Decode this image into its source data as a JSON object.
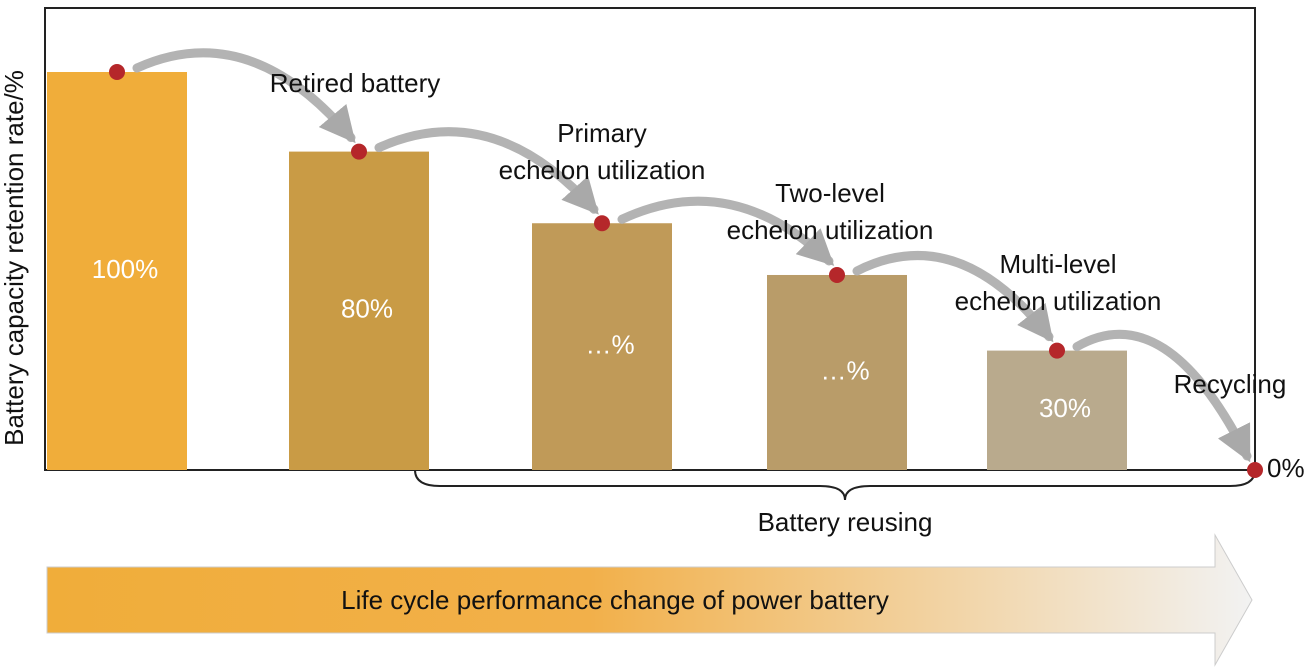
{
  "chart_data": {
    "type": "bar",
    "y_label": "Battery capacity retention rate/%",
    "categories": [
      null,
      null,
      null,
      null,
      null,
      null
    ],
    "values": [
      100,
      80,
      62,
      49,
      30,
      0
    ],
    "value_labels": [
      "100%",
      "80%",
      "…%",
      "…%",
      "30%",
      "0%"
    ],
    "colors": [
      "#f0ad3a",
      "#c99b45",
      "#c09a58",
      "#b99c69",
      "#b9aa8d",
      "#b5272a"
    ],
    "point_color": "#b5272a",
    "annotations": [
      [
        "Retired battery"
      ],
      [
        "Primary",
        "echelon utilization"
      ],
      [
        "Two-level",
        "echelon utilization"
      ],
      [
        "Multi-level",
        "echelon utilization"
      ],
      [
        "Recycling"
      ]
    ],
    "brace_label": "Battery reusing",
    "arrow_label": "Life cycle performance change of power battery"
  }
}
